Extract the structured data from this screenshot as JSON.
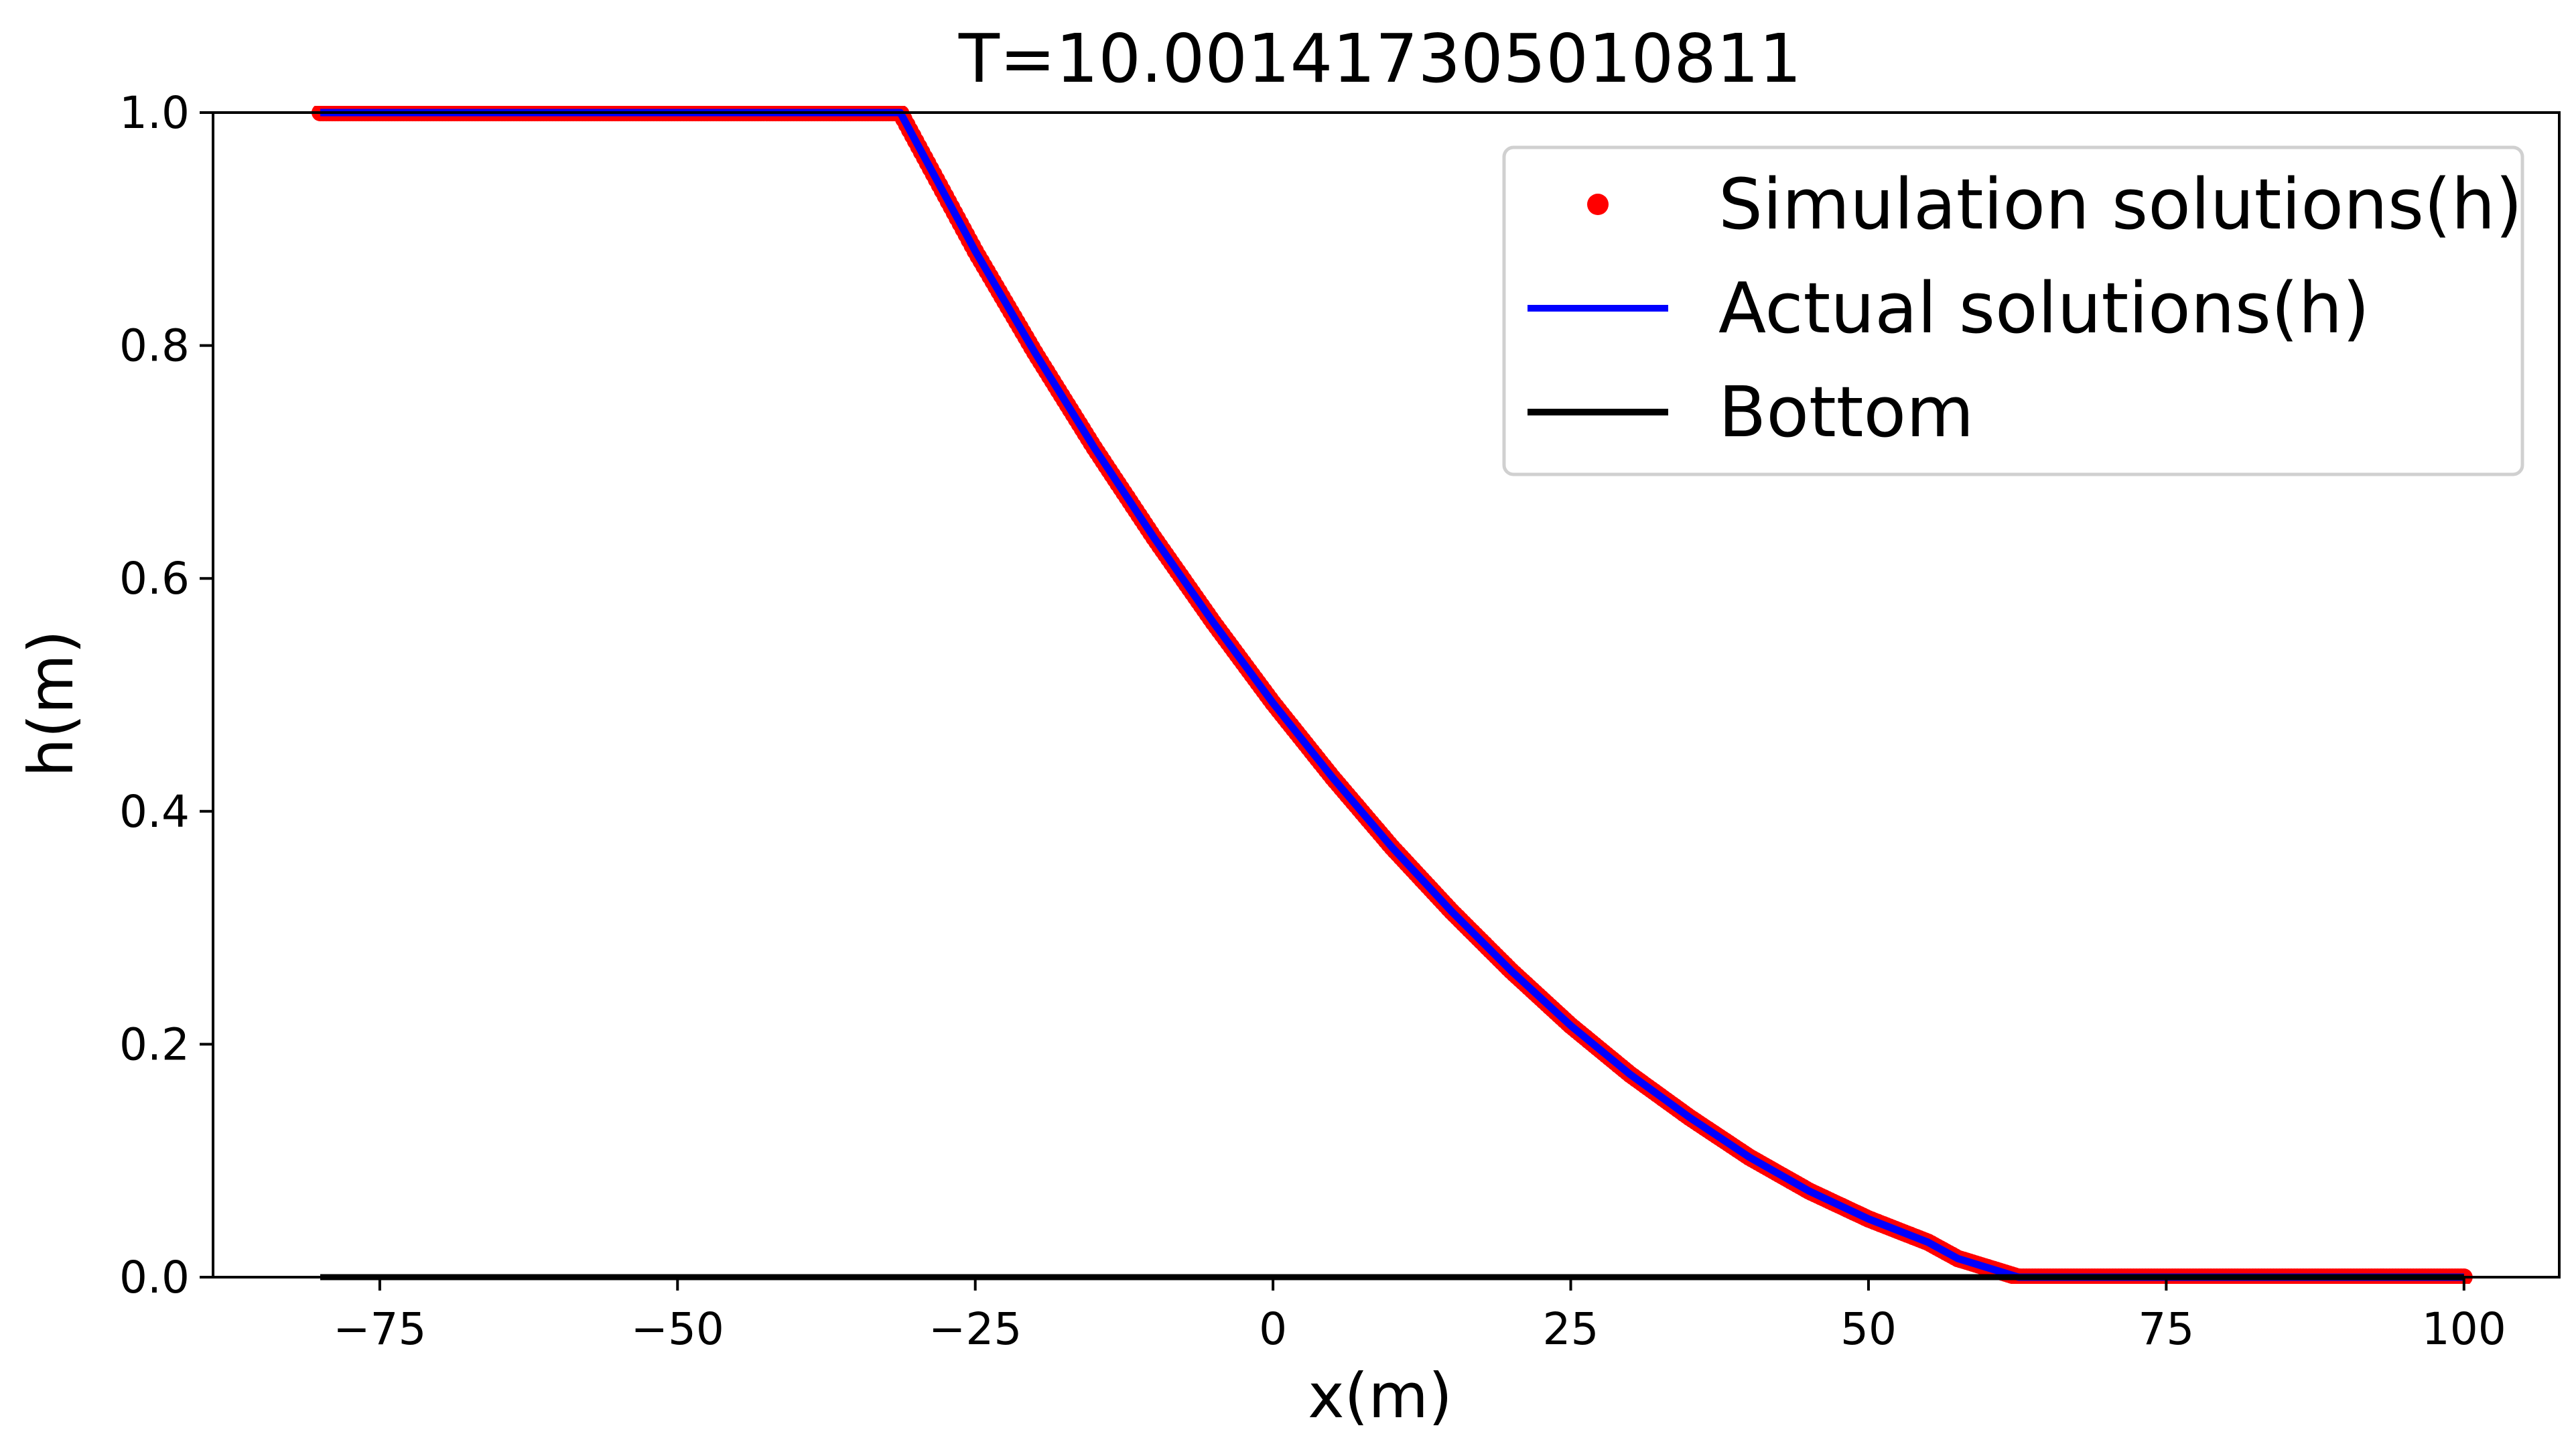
{
  "chart_data": {
    "type": "line",
    "title": "T=10.001417305010811",
    "xlabel": "x(m)",
    "ylabel": "h(m)",
    "xlim": [
      -89,
      108
    ],
    "ylim": [
      0.0,
      1.0
    ],
    "xticks": [
      -75,
      -50,
      -25,
      0,
      25,
      50,
      75,
      100
    ],
    "xtick_labels": [
      "−75",
      "−50",
      "−25",
      "0",
      "25",
      "50",
      "75",
      "100"
    ],
    "yticks": [
      0.0,
      0.2,
      0.4,
      0.6,
      0.8,
      1.0
    ],
    "ytick_labels": [
      "0.0",
      "0.2",
      "0.4",
      "0.6",
      "0.8",
      "1.0"
    ],
    "grid": false,
    "legend_position": "top-right",
    "series": [
      {
        "name": "Simulation solutions(h)",
        "kind": "scatter",
        "color": "#ff0000",
        "x_range": [
          -80,
          100
        ],
        "x_step": 0.25
      },
      {
        "name": "Actual solutions(h)",
        "kind": "line",
        "color": "#0000ff",
        "x": [
          -80,
          -31.3,
          -25,
          -20,
          -15,
          -10,
          -5,
          0,
          5,
          10,
          15,
          20,
          25,
          30,
          35,
          40,
          45,
          50,
          55,
          57.5,
          62.6,
          100
        ],
        "y": [
          1.0,
          1.0,
          0.881,
          0.794,
          0.712,
          0.635,
          0.562,
          0.493,
          0.429,
          0.369,
          0.314,
          0.263,
          0.216,
          0.174,
          0.137,
          0.103,
          0.074,
          0.05,
          0.03,
          0.016,
          0.0,
          0.0
        ]
      },
      {
        "name": "Bottom",
        "kind": "line",
        "color": "#000000",
        "x": [
          -80,
          100
        ],
        "y": [
          0.0,
          0.0
        ]
      }
    ]
  }
}
